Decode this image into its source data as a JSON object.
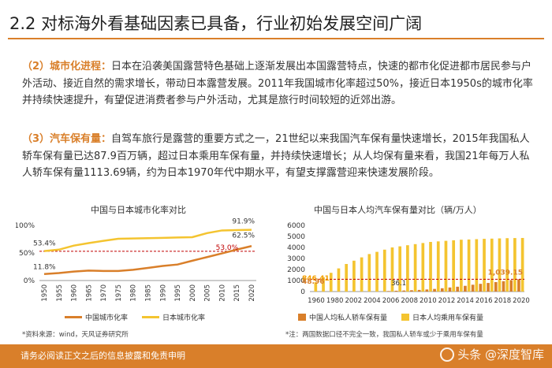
{
  "title": "2.2 对标海外看基础因素已具备，行业初始发展空间广阔",
  "para1": {
    "head": "（2）城市化进程：",
    "body": "日本在沿袭美国露营特色基础上逐渐发展出本国露营特点，快速的都市化促进都市居民参与户外活动、接近自然的需求增长，带动日本露营发展。2011年我国城市化率超过50%，接近日本1950s的城市化率并持续快速提升，有望促进消费者参与户外活动，尤其是旅行时间较短的近郊出游。"
  },
  "para2": {
    "head": "（3）汽车保有量：",
    "body": "自驾车旅行是露营的重要方式之一，21世纪以来我国汽车保有量快速增长，2015年我国私人轿车保有量已达87.9百万辆，超过日本乘用车保有量，并持续快速增长；从人均保有量来看，我国21年每万人私人轿车保有量1113.69辆，约为日本1970年代中期水平，有望支撑露营迎来快速发展阶段。"
  },
  "chart_data": [
    {
      "type": "line",
      "title": "中国与日本城市化率对比",
      "x": [
        "1950",
        "1955",
        "1960",
        "1965",
        "1970",
        "1975",
        "1980",
        "1985",
        "1990",
        "1995",
        "2000",
        "2005",
        "2010",
        "2015",
        "2020"
      ],
      "series": [
        {
          "name": "中国城市化率",
          "color": "#d97f2a",
          "values": [
            11.8,
            13.5,
            16.2,
            18.1,
            17.4,
            17.3,
            19.4,
            22.9,
            26.4,
            29.0,
            35.9,
            42.5,
            49.2,
            56.1,
            62.5
          ]
        },
        {
          "name": "日本城市化率",
          "color": "#f4c430",
          "values": [
            53.4,
            56.0,
            63.3,
            67.9,
            71.9,
            75.7,
            76.2,
            76.7,
            77.3,
            78.0,
            78.6,
            86.0,
            90.8,
            91.4,
            91.9
          ]
        }
      ],
      "ylim": [
        0,
        100
      ],
      "yticks": [
        "0%",
        "50%",
        "100%"
      ],
      "reference_line": 53.0,
      "annotations": [
        "53.4%",
        "11.8%",
        "91.9%",
        "62.5%",
        "53.0%"
      ]
    },
    {
      "type": "bar",
      "title": "中国与日本人均汽车保有量对比（辆/万人）",
      "x_labels": [
        "1960",
        "1980",
        "2002",
        "2004",
        "2006",
        "2008",
        "2010",
        "2012",
        "2014",
        "2016",
        "2018",
        "2020"
      ],
      "series": [
        {
          "name": "中国人均私人轿车保有量",
          "color": "#d97f2a",
          "values": [
            null,
            null,
            null,
            null,
            null,
            null,
            null,
            null,
            null,
            null,
            48.96,
            75,
            97,
            122,
            150,
            190,
            240,
            300,
            370,
            440,
            520,
            620,
            700,
            780,
            860,
            940,
            1039.15,
            1113.69
          ]
        },
        {
          "name": "日本人均乘用车保有量",
          "color": "#f4c430",
          "values": [
            846.41,
            1300,
            1700,
            2100,
            2500,
            2800,
            3100,
            3400,
            3600,
            3800,
            4000,
            4100,
            4200,
            4300,
            4400,
            4500,
            4550,
            4600,
            4650,
            4700,
            4720,
            4750,
            4780,
            4800,
            4820,
            4840,
            4850,
            4860
          ]
        }
      ],
      "ylim": [
        0,
        6000
      ],
      "yticks": [
        "0",
        "1000",
        "2000",
        "3000",
        "4000",
        "5000",
        "6000"
      ],
      "reference_line": 1113.69,
      "annotations": [
        "846.41",
        "48.96",
        "36.1",
        "1,039.15"
      ]
    }
  ],
  "legend1": {
    "series0": "中国城市化率",
    "series1": "日本城市化率"
  },
  "legend2": {
    "series0": "中国人均私人轿车保有量",
    "series1": "日本人均乘用车保有量"
  },
  "source_note": "*资料来源：wind，天风证券研究所",
  "chart_note": "*注：两国数据口径不完全一致，我国私人轿车或少于乘用车保有量",
  "footer": "请务必阅读正文之后的信息披露和免责申明",
  "watermark": "头条 @深度智库",
  "colors": {
    "accent": "#d97f2a",
    "yellow": "#f4c430"
  }
}
